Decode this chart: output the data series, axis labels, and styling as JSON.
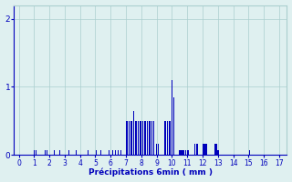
{
  "xlabel": "Précipitations 6min ( mm )",
  "background_color": "#dff0f0",
  "bar_color": "#0000bb",
  "grid_color": "#aacece",
  "text_color": "#0000bb",
  "xlim": [
    -0.3,
    17.5
  ],
  "ylim": [
    0,
    2.2
  ],
  "yticks": [
    0,
    1,
    2
  ],
  "xticks": [
    0,
    1,
    2,
    3,
    4,
    5,
    6,
    7,
    8,
    9,
    10,
    11,
    12,
    13,
    14,
    15,
    16,
    17
  ],
  "bar_width": 0.055,
  "bar_centers": [
    1.0,
    1.15,
    1.7,
    1.85,
    2.3,
    2.7,
    3.3,
    3.75,
    4.5,
    5.05,
    5.35,
    5.9,
    6.15,
    6.3,
    6.5,
    6.65,
    7.0,
    7.1,
    7.2,
    7.3,
    7.4,
    7.5,
    7.6,
    7.7,
    7.8,
    7.9,
    8.0,
    8.1,
    8.2,
    8.3,
    8.4,
    8.5,
    8.6,
    8.7,
    8.8,
    9.0,
    9.1,
    9.5,
    9.6,
    9.7,
    9.8,
    9.9,
    10.0,
    10.1,
    10.5,
    10.55,
    10.6,
    10.65,
    10.7,
    10.8,
    10.9,
    11.0,
    11.1,
    11.5,
    11.6,
    11.65,
    11.7,
    12.0,
    12.05,
    12.1,
    12.15,
    12.2,
    12.25,
    12.8,
    12.85,
    12.9,
    12.95,
    13.0,
    13.05,
    15.05
  ],
  "bar_heights": [
    0.07,
    0.07,
    0.07,
    0.07,
    0.07,
    0.07,
    0.07,
    0.07,
    0.07,
    0.07,
    0.07,
    0.07,
    0.07,
    0.07,
    0.07,
    0.07,
    0.5,
    0.5,
    0.5,
    0.5,
    0.5,
    0.65,
    0.5,
    0.5,
    0.5,
    0.5,
    0.5,
    0.5,
    0.5,
    0.5,
    0.5,
    0.5,
    0.5,
    0.5,
    0.5,
    0.17,
    0.17,
    0.5,
    0.5,
    0.5,
    0.5,
    0.5,
    1.1,
    0.85,
    0.07,
    0.07,
    0.07,
    0.07,
    0.07,
    0.07,
    0.07,
    0.07,
    0.07,
    0.17,
    0.17,
    0.17,
    0.17,
    0.17,
    0.17,
    0.17,
    0.17,
    0.17,
    0.17,
    0.17,
    0.17,
    0.17,
    0.17,
    0.07,
    0.07,
    0.07
  ]
}
